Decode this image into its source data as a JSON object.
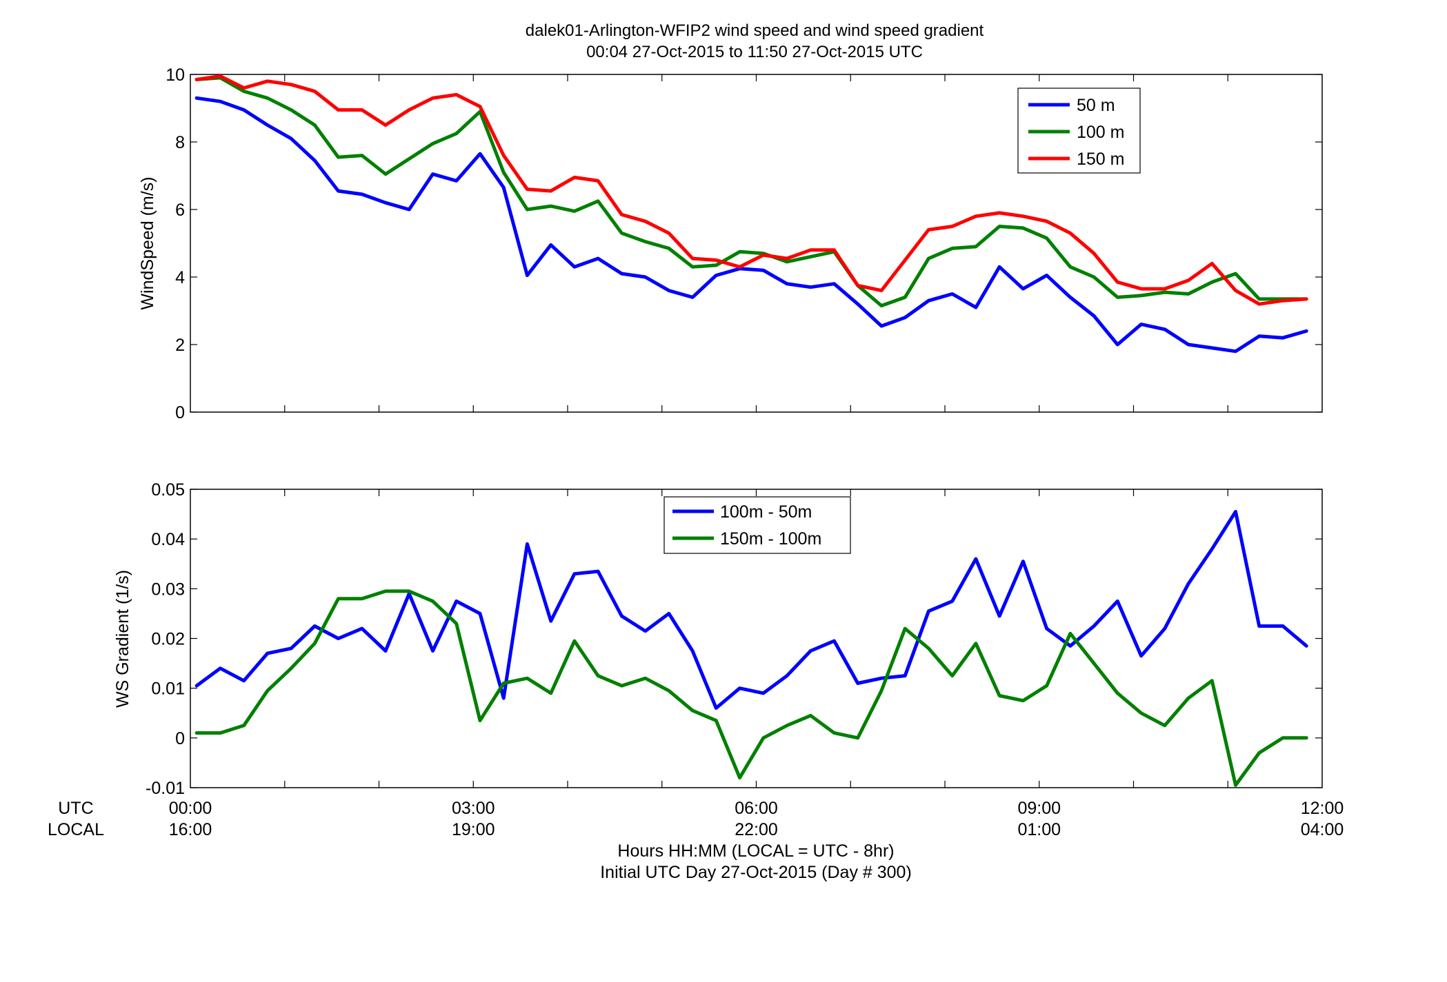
{
  "figure": {
    "title_line1": "dalek01-Arlington-WFIP2  wind speed and wind speed gradient",
    "title_line2": "00:04 27-Oct-2015 to 11:50 27-Oct-2015  UTC",
    "row_label_utc": "UTC",
    "row_label_local": "LOCAL",
    "xlabel_line1": "Hours HH:MM  (LOCAL = UTC - 8hr)",
    "xlabel_line2": "Initial UTC Day 27-Oct-2015 (Day # 300)",
    "x_ticks_utc": [
      "00:00",
      "03:00",
      "06:00",
      "09:00",
      "12:00"
    ],
    "x_ticks_local": [
      "16:00",
      "19:00",
      "22:00",
      "01:00",
      "04:00"
    ]
  },
  "chart_data": [
    {
      "type": "line",
      "ylabel": "WindSpeed (m/s)",
      "ylim": [
        0,
        10
      ],
      "yticks": [
        "0",
        "2",
        "4",
        "6",
        "8",
        "10"
      ],
      "xlim": [
        0,
        12
      ],
      "x_unit": "hours UTC",
      "legend_position": "top-right",
      "series": [
        {
          "name": "50 m",
          "color": "#0000ff",
          "values": [
            9.3,
            9.2,
            8.95,
            8.5,
            8.1,
            7.45,
            6.55,
            6.45,
            6.2,
            6.0,
            7.05,
            6.85,
            7.65,
            6.65,
            4.05,
            4.95,
            4.3,
            4.55,
            4.1,
            4.0,
            3.6,
            3.4,
            4.05,
            4.25,
            4.2,
            3.8,
            3.7,
            3.8,
            3.2,
            2.55,
            2.8,
            3.3,
            3.5,
            3.1,
            4.3,
            3.65,
            4.05,
            3.4,
            2.85,
            2.0,
            2.6,
            2.45,
            2.0,
            1.9,
            1.8,
            2.25,
            2.2,
            2.4
          ]
        },
        {
          "name": "100 m",
          "color": "#008000",
          "values": [
            9.85,
            9.9,
            9.5,
            9.3,
            8.95,
            8.5,
            7.55,
            7.6,
            7.05,
            7.5,
            7.95,
            8.25,
            8.9,
            7.1,
            6.0,
            6.1,
            5.95,
            6.25,
            5.3,
            5.05,
            4.85,
            4.3,
            4.35,
            4.75,
            4.7,
            4.45,
            4.6,
            4.75,
            3.75,
            3.15,
            3.4,
            4.55,
            4.85,
            4.9,
            5.5,
            5.45,
            5.15,
            4.3,
            4.0,
            3.4,
            3.45,
            3.55,
            3.5,
            3.85,
            4.1,
            3.35,
            3.35,
            3.35
          ]
        },
        {
          "name": "150 m",
          "color": "#ff0000",
          "values": [
            9.85,
            9.95,
            9.6,
            9.8,
            9.7,
            9.5,
            8.95,
            8.95,
            8.5,
            8.95,
            9.3,
            9.4,
            9.05,
            7.6,
            6.6,
            6.55,
            6.95,
            6.85,
            5.85,
            5.65,
            5.3,
            4.55,
            4.5,
            4.3,
            4.65,
            4.55,
            4.8,
            4.8,
            3.75,
            3.6,
            4.5,
            5.4,
            5.5,
            5.8,
            5.9,
            5.8,
            5.65,
            5.3,
            4.7,
            3.85,
            3.65,
            3.65,
            3.9,
            4.4,
            3.6,
            3.2,
            3.3,
            3.35
          ]
        }
      ]
    },
    {
      "type": "line",
      "ylabel": "WS Gradient (1/s)",
      "ylim": [
        -0.01,
        0.05
      ],
      "yticks": [
        "-0.01",
        "0",
        "0.01",
        "0.02",
        "0.03",
        "0.04",
        "0.05"
      ],
      "xlim": [
        0,
        12
      ],
      "x_unit": "hours UTC",
      "legend_position": "top-center",
      "series": [
        {
          "name": "100m - 50m",
          "color": "#0000ff",
          "values": [
            0.0105,
            0.014,
            0.0115,
            0.017,
            0.018,
            0.0225,
            0.02,
            0.022,
            0.0175,
            0.029,
            0.0175,
            0.0275,
            0.025,
            0.008,
            0.039,
            0.0235,
            0.033,
            0.0335,
            0.0245,
            0.0215,
            0.025,
            0.0175,
            0.006,
            0.01,
            0.009,
            0.0125,
            0.0175,
            0.0195,
            0.011,
            0.012,
            0.0125,
            0.0255,
            0.0275,
            0.036,
            0.0245,
            0.0355,
            0.022,
            0.0185,
            0.0225,
            0.0275,
            0.0165,
            0.022,
            0.031,
            0.038,
            0.0455,
            0.0225,
            0.0225,
            0.0185
          ]
        },
        {
          "name": "150m - 100m",
          "color": "#008000",
          "values": [
            0.001,
            0.001,
            0.0025,
            0.0095,
            0.014,
            0.019,
            0.028,
            0.028,
            0.0295,
            0.0295,
            0.0275,
            0.023,
            0.0035,
            0.011,
            0.012,
            0.009,
            0.0195,
            0.0125,
            0.0105,
            0.012,
            0.0095,
            0.0055,
            0.0035,
            -0.008,
            0.0,
            0.0025,
            0.0045,
            0.001,
            0.0,
            0.0095,
            0.022,
            0.018,
            0.0125,
            0.019,
            0.0085,
            0.0075,
            0.0105,
            0.021,
            0.015,
            0.009,
            0.005,
            0.0025,
            0.008,
            0.0115,
            -0.0095,
            -0.003,
            0.0,
            0.0
          ]
        }
      ]
    }
  ]
}
